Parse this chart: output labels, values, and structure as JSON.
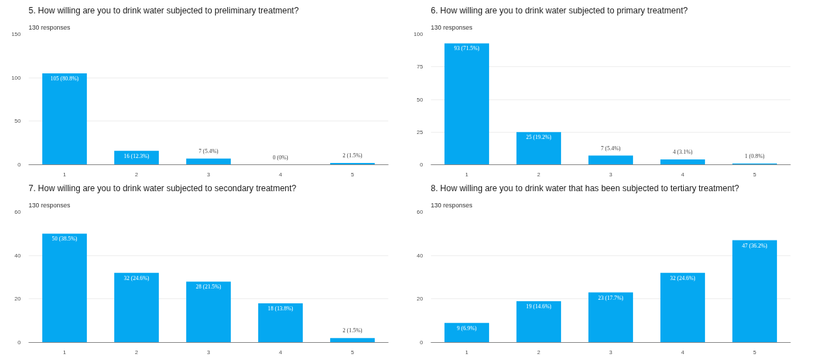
{
  "chart_data": [
    {
      "type": "bar",
      "title": "5. How willing are you to drink water subjected to preliminary treatment?",
      "subtitle": "130 responses",
      "categories": [
        "1",
        "2",
        "3",
        "4",
        "5"
      ],
      "values": [
        105,
        16,
        7,
        0,
        2
      ],
      "color": "#05a8f1",
      "value_labels": [
        "105 (80.8%)",
        "16 (12.3%)",
        "7 (5.4%)",
        "0 (0%)",
        "2 (1.5%)"
      ],
      "ylim": [
        0,
        150
      ],
      "yticks": [
        0,
        50,
        100,
        150
      ],
      "grid": "y"
    },
    {
      "type": "bar",
      "title": "6. How willing are you to drink water subjected to primary treatment?",
      "subtitle": "130 responses",
      "categories": [
        "1",
        "2",
        "3",
        "4",
        "5"
      ],
      "values": [
        93,
        25,
        7,
        4,
        1
      ],
      "color": "#05a8f1",
      "value_labels": [
        "93 (71.5%)",
        "25 (19.2%)",
        "7 (5.4%)",
        "4 (3.1%)",
        "1 (0.8%)"
      ],
      "ylim": [
        0,
        100
      ],
      "yticks": [
        0,
        25,
        50,
        75,
        100
      ],
      "grid": "y"
    },
    {
      "type": "bar",
      "title": "7. How willing are you to drink water subjected to secondary treatment?",
      "subtitle": "130 responses",
      "categories": [
        "1",
        "2",
        "3",
        "4",
        "5"
      ],
      "values": [
        50,
        32,
        28,
        18,
        2
      ],
      "color": "#05a8f1",
      "value_labels": [
        "50 (38.5%)",
        "32 (24.6%)",
        "28 (21.5%)",
        "18 (13.8%)",
        "2 (1.5%)"
      ],
      "ylim": [
        0,
        60
      ],
      "yticks": [
        0,
        20,
        40,
        60
      ],
      "grid": "y"
    },
    {
      "type": "bar",
      "title": "8. How willing are you to drink water that has been subjected to tertiary treatment?",
      "subtitle": "130 responses",
      "categories": [
        "1",
        "2",
        "3",
        "4",
        "5"
      ],
      "values": [
        9,
        19,
        23,
        32,
        47
      ],
      "color": "#05a8f1",
      "value_labels": [
        "9 (6.9%)",
        "19 (14.6%)",
        "23 (17.7%)",
        "32 (24.6%)",
        "47 (36.2%)"
      ],
      "ylim": [
        0,
        60
      ],
      "yticks": [
        0,
        20,
        40,
        60
      ],
      "grid": "y"
    }
  ]
}
